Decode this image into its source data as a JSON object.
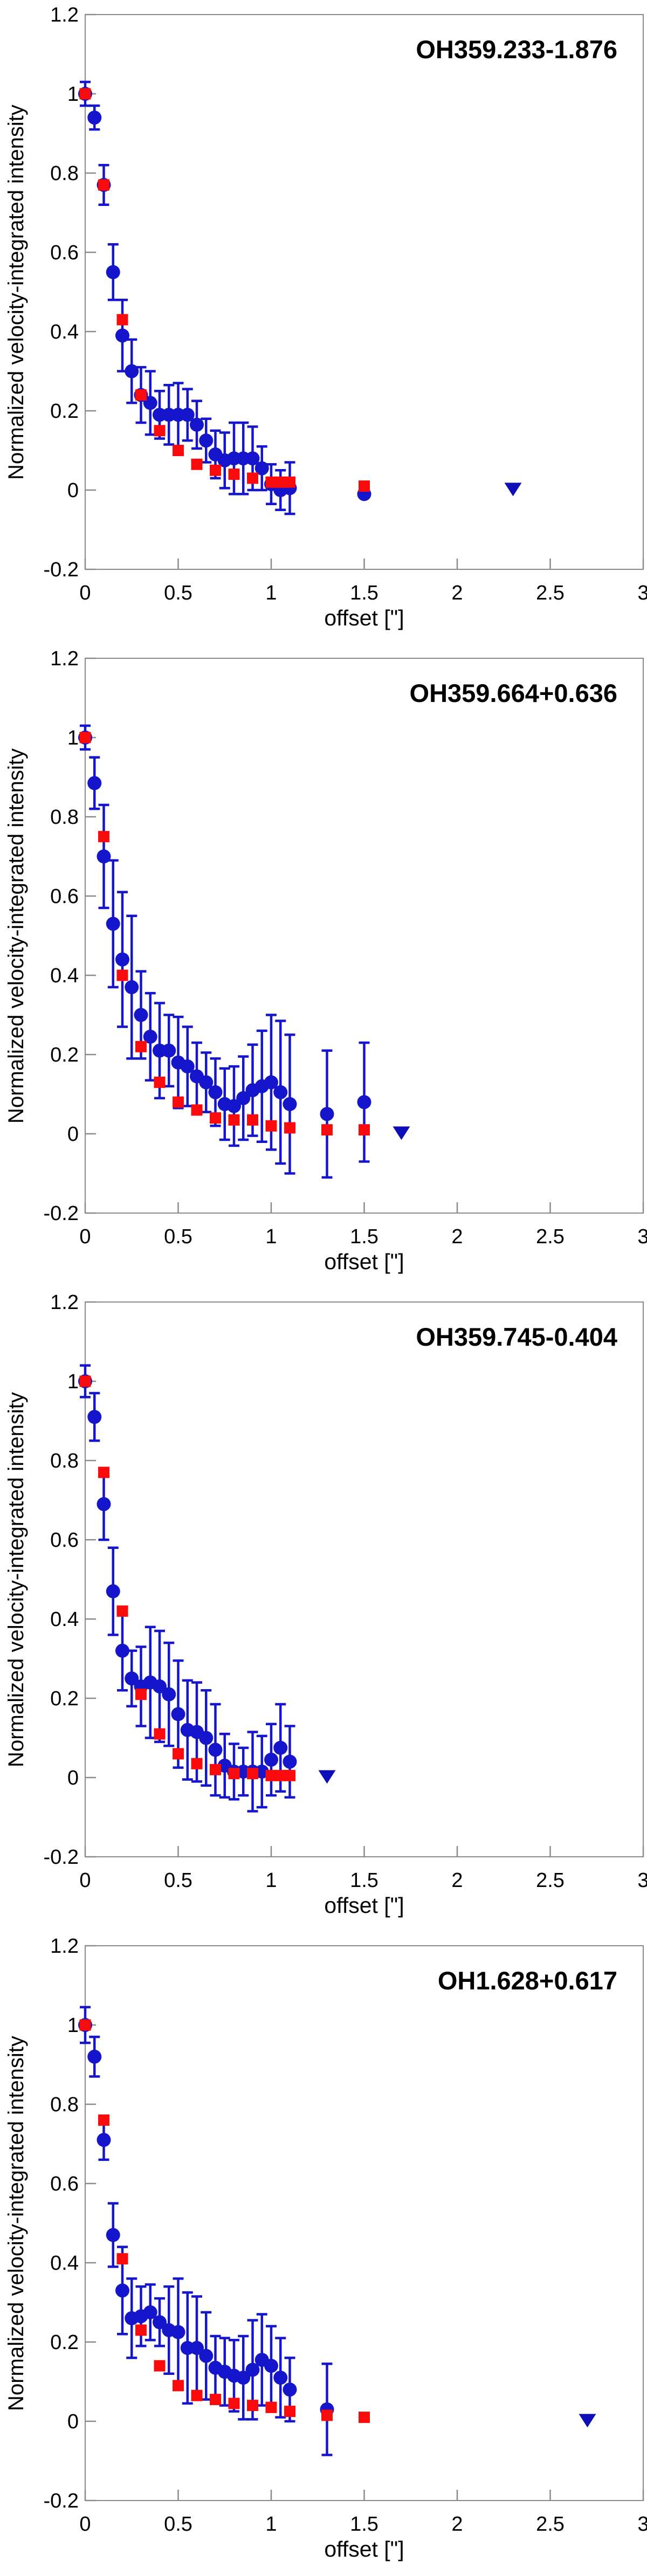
{
  "page": {
    "background": "#FFFFFF",
    "description_visible_text_only": true
  },
  "chart_data": {
    "type": "scatter",
    "x_label": "offset [\"]",
    "y_label": "Normalized velocity-integrated intensity",
    "xlim": [
      0,
      3
    ],
    "ylim": [
      -0.2,
      1.2
    ],
    "grid": false,
    "legend": "none",
    "x_ticks": {
      "values": [
        0,
        0.5,
        1,
        1.5,
        2,
        2.5,
        3
      ],
      "labels": [
        "0",
        "0.5",
        "1",
        "1.5",
        "2",
        "2.5",
        "3"
      ]
    },
    "y_ticks": {
      "values": [
        -0.2,
        0,
        0.2,
        0.4,
        0.6,
        0.8,
        1,
        1.2
      ],
      "labels": [
        "-0.2",
        "0",
        "0.2",
        "0.4",
        "0.6",
        "0.8",
        "1",
        "1.2"
      ]
    },
    "colors": {
      "blue_marker": "#1515CC",
      "blue_errorbar": "#1515CC",
      "red_marker": "#FA0A0A",
      "limit_triangle": "#0E0EB8",
      "frame": "#8A8A8A",
      "text": "#000000"
    },
    "charts": [
      {
        "title": "OH359.233-1.876",
        "blue_points_xyerr": [
          [
            0.0,
            1.0,
            0.03
          ],
          [
            0.05,
            0.94,
            0.03
          ],
          [
            0.1,
            0.77,
            0.05
          ],
          [
            0.15,
            0.55,
            0.07
          ],
          [
            0.2,
            0.39,
            0.09
          ],
          [
            0.25,
            0.3,
            0.08
          ],
          [
            0.3,
            0.24,
            0.07
          ],
          [
            0.35,
            0.22,
            0.08
          ],
          [
            0.4,
            0.19,
            0.06
          ],
          [
            0.45,
            0.19,
            0.075
          ],
          [
            0.5,
            0.19,
            0.08
          ],
          [
            0.55,
            0.19,
            0.065
          ],
          [
            0.6,
            0.165,
            0.06
          ],
          [
            0.65,
            0.125,
            0.055
          ],
          [
            0.7,
            0.09,
            0.06
          ],
          [
            0.75,
            0.075,
            0.07
          ],
          [
            0.8,
            0.08,
            0.09
          ],
          [
            0.85,
            0.08,
            0.09
          ],
          [
            0.9,
            0.08,
            0.08
          ],
          [
            0.95,
            0.055,
            0.055
          ],
          [
            1.0,
            0.015,
            0.05
          ],
          [
            1.05,
            0.0,
            0.05
          ],
          [
            1.1,
            0.005,
            0.065
          ],
          [
            1.5,
            -0.01,
            0
          ]
        ],
        "red_points_xy": [
          [
            0.0,
            1.0
          ],
          [
            0.1,
            0.77
          ],
          [
            0.2,
            0.43
          ],
          [
            0.3,
            0.24
          ],
          [
            0.4,
            0.15
          ],
          [
            0.5,
            0.1
          ],
          [
            0.6,
            0.065
          ],
          [
            0.7,
            0.05
          ],
          [
            0.8,
            0.04
          ],
          [
            0.9,
            0.03
          ],
          [
            1.0,
            0.02
          ],
          [
            1.05,
            0.02
          ],
          [
            1.1,
            0.02
          ],
          [
            1.5,
            0.01
          ]
        ],
        "upper_limit": {
          "x": 2.3,
          "y": 0.005
        }
      },
      {
        "title": "OH359.664+0.636",
        "blue_points_xyerr": [
          [
            0.0,
            1.0,
            0.03
          ],
          [
            0.05,
            0.885,
            0.065
          ],
          [
            0.1,
            0.7,
            0.13
          ],
          [
            0.15,
            0.53,
            0.16
          ],
          [
            0.2,
            0.44,
            0.17
          ],
          [
            0.25,
            0.37,
            0.18
          ],
          [
            0.3,
            0.3,
            0.11
          ],
          [
            0.35,
            0.245,
            0.11
          ],
          [
            0.4,
            0.21,
            0.12
          ],
          [
            0.45,
            0.21,
            0.09
          ],
          [
            0.5,
            0.18,
            0.115
          ],
          [
            0.55,
            0.17,
            0.1
          ],
          [
            0.6,
            0.145,
            0.085
          ],
          [
            0.65,
            0.13,
            0.075
          ],
          [
            0.7,
            0.105,
            0.085
          ],
          [
            0.75,
            0.075,
            0.09
          ],
          [
            0.8,
            0.07,
            0.1
          ],
          [
            0.85,
            0.09,
            0.105
          ],
          [
            0.9,
            0.11,
            0.115
          ],
          [
            0.95,
            0.12,
            0.14
          ],
          [
            1.0,
            0.13,
            0.17
          ],
          [
            1.05,
            0.105,
            0.18
          ],
          [
            1.1,
            0.075,
            0.175
          ],
          [
            1.3,
            0.05,
            0.16
          ],
          [
            1.5,
            0.08,
            0.15
          ]
        ],
        "red_points_xy": [
          [
            0.0,
            1.0
          ],
          [
            0.1,
            0.75
          ],
          [
            0.2,
            0.4
          ],
          [
            0.3,
            0.22
          ],
          [
            0.4,
            0.13
          ],
          [
            0.5,
            0.08
          ],
          [
            0.6,
            0.06
          ],
          [
            0.7,
            0.04
          ],
          [
            0.8,
            0.035
          ],
          [
            0.9,
            0.035
          ],
          [
            1.0,
            0.02
          ],
          [
            1.1,
            0.015
          ],
          [
            1.3,
            0.01
          ],
          [
            1.5,
            0.01
          ]
        ],
        "upper_limit": {
          "x": 1.7,
          "y": 0.005
        }
      },
      {
        "title": "OH359.745-0.404",
        "blue_points_xyerr": [
          [
            0.0,
            1.0,
            0.04
          ],
          [
            0.05,
            0.91,
            0.06
          ],
          [
            0.1,
            0.69,
            0.09
          ],
          [
            0.15,
            0.47,
            0.11
          ],
          [
            0.2,
            0.32,
            0.1
          ],
          [
            0.25,
            0.25,
            0.07
          ],
          [
            0.3,
            0.23,
            0.1
          ],
          [
            0.35,
            0.24,
            0.14
          ],
          [
            0.4,
            0.23,
            0.14
          ],
          [
            0.45,
            0.21,
            0.13
          ],
          [
            0.5,
            0.16,
            0.135
          ],
          [
            0.55,
            0.12,
            0.125
          ],
          [
            0.6,
            0.115,
            0.125
          ],
          [
            0.65,
            0.1,
            0.12
          ],
          [
            0.7,
            0.07,
            0.115
          ],
          [
            0.75,
            0.03,
            0.08
          ],
          [
            0.8,
            0.015,
            0.07
          ],
          [
            0.85,
            0.015,
            0.06
          ],
          [
            0.9,
            0.015,
            0.1
          ],
          [
            0.95,
            0.015,
            0.09
          ],
          [
            1.0,
            0.045,
            0.09
          ],
          [
            1.05,
            0.075,
            0.11
          ],
          [
            1.1,
            0.04,
            0.09
          ]
        ],
        "red_points_xy": [
          [
            0.0,
            1.0
          ],
          [
            0.1,
            0.77
          ],
          [
            0.2,
            0.42
          ],
          [
            0.3,
            0.21
          ],
          [
            0.4,
            0.11
          ],
          [
            0.5,
            0.06
          ],
          [
            0.6,
            0.035
          ],
          [
            0.7,
            0.02
          ],
          [
            0.8,
            0.01
          ],
          [
            0.9,
            0.01
          ],
          [
            1.0,
            0.005
          ],
          [
            1.05,
            0.005
          ],
          [
            1.1,
            0.005
          ]
        ],
        "upper_limit": {
          "x": 1.3,
          "y": 0.005
        }
      },
      {
        "title": "OH1.628+0.617",
        "blue_points_xyerr": [
          [
            0.0,
            1.0,
            0.045
          ],
          [
            0.05,
            0.92,
            0.05
          ],
          [
            0.1,
            0.71,
            0.05
          ],
          [
            0.15,
            0.47,
            0.08
          ],
          [
            0.2,
            0.33,
            0.11
          ],
          [
            0.25,
            0.26,
            0.1
          ],
          [
            0.3,
            0.265,
            0.075
          ],
          [
            0.35,
            0.275,
            0.07
          ],
          [
            0.4,
            0.25,
            0.06
          ],
          [
            0.45,
            0.23,
            0.11
          ],
          [
            0.5,
            0.225,
            0.135
          ],
          [
            0.55,
            0.185,
            0.14
          ],
          [
            0.6,
            0.185,
            0.13
          ],
          [
            0.65,
            0.165,
            0.11
          ],
          [
            0.7,
            0.135,
            0.08
          ],
          [
            0.75,
            0.125,
            0.085
          ],
          [
            0.8,
            0.115,
            0.09
          ],
          [
            0.85,
            0.11,
            0.105
          ],
          [
            0.9,
            0.13,
            0.125
          ],
          [
            0.95,
            0.155,
            0.115
          ],
          [
            1.0,
            0.14,
            0.1
          ],
          [
            1.05,
            0.11,
            0.1
          ],
          [
            1.1,
            0.08,
            0.08
          ],
          [
            1.3,
            0.03,
            0.115
          ]
        ],
        "red_points_xy": [
          [
            0.0,
            1.0
          ],
          [
            0.1,
            0.76
          ],
          [
            0.2,
            0.41
          ],
          [
            0.3,
            0.23
          ],
          [
            0.4,
            0.14
          ],
          [
            0.5,
            0.09
          ],
          [
            0.6,
            0.065
          ],
          [
            0.7,
            0.055
          ],
          [
            0.8,
            0.045
          ],
          [
            0.9,
            0.04
          ],
          [
            1.0,
            0.035
          ],
          [
            1.1,
            0.025
          ],
          [
            1.3,
            0.015
          ],
          [
            1.5,
            0.01
          ]
        ],
        "upper_limit": {
          "x": 2.7,
          "y": 0.005
        }
      }
    ]
  }
}
